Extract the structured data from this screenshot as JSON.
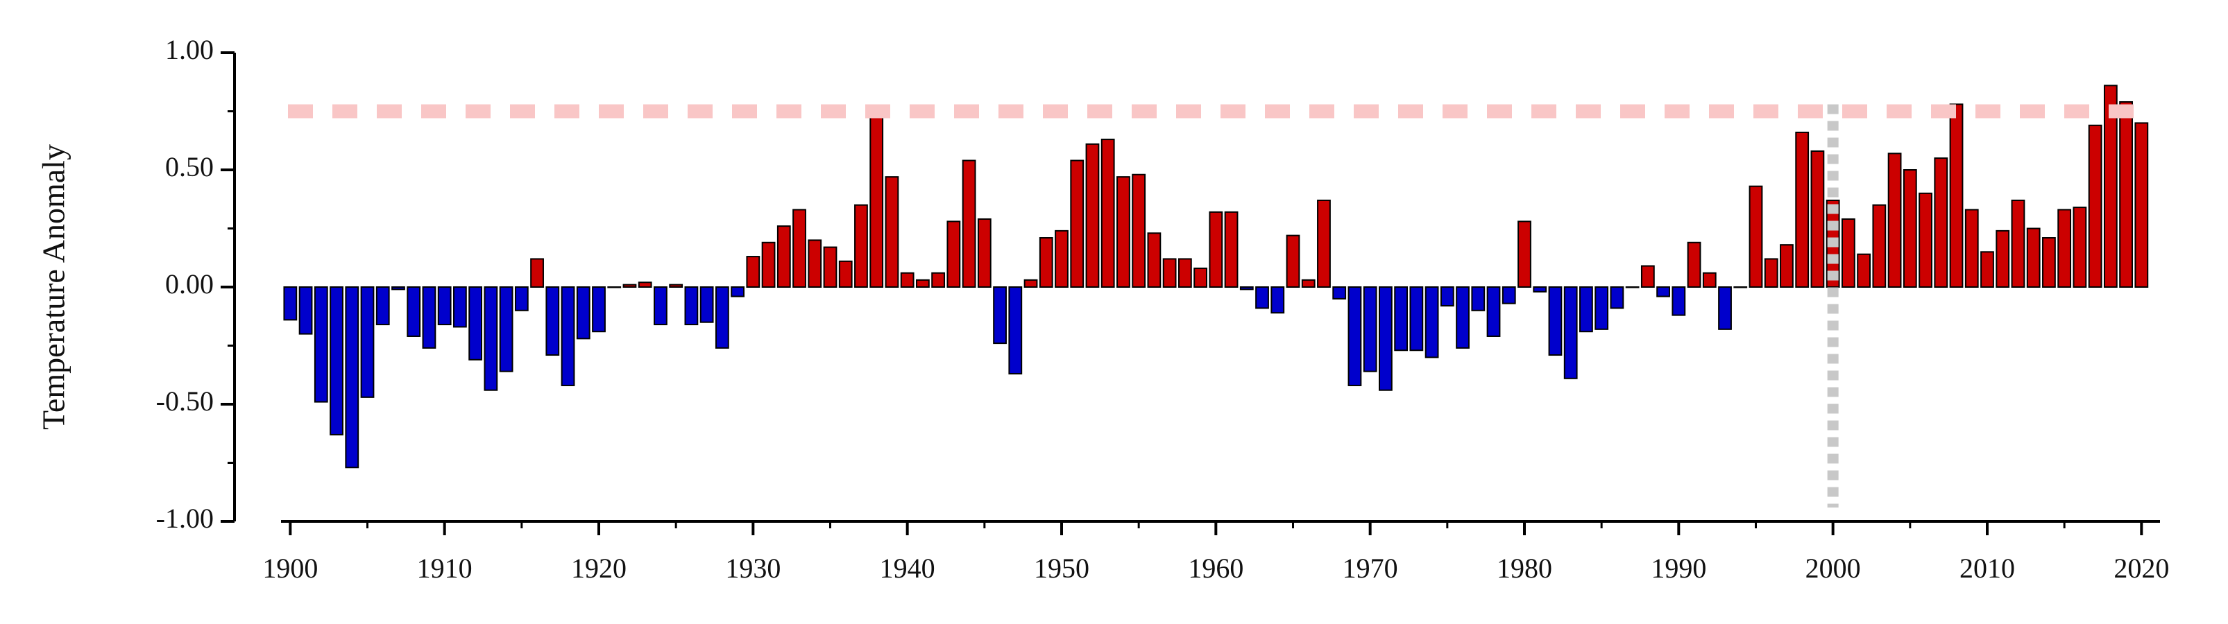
{
  "chart_data": {
    "type": "bar",
    "y_label": "Temperature Anomaly",
    "x": [
      1900,
      1901,
      1902,
      1903,
      1904,
      1905,
      1906,
      1907,
      1908,
      1909,
      1910,
      1911,
      1912,
      1913,
      1914,
      1915,
      1916,
      1917,
      1918,
      1919,
      1920,
      1921,
      1922,
      1923,
      1924,
      1925,
      1926,
      1927,
      1928,
      1929,
      1930,
      1931,
      1932,
      1933,
      1934,
      1935,
      1936,
      1937,
      1938,
      1939,
      1940,
      1941,
      1942,
      1943,
      1944,
      1945,
      1946,
      1947,
      1948,
      1949,
      1950,
      1951,
      1952,
      1953,
      1954,
      1955,
      1956,
      1957,
      1958,
      1959,
      1960,
      1961,
      1962,
      1963,
      1964,
      1965,
      1966,
      1967,
      1968,
      1969,
      1970,
      1971,
      1972,
      1973,
      1974,
      1975,
      1976,
      1977,
      1978,
      1979,
      1980,
      1981,
      1982,
      1983,
      1984,
      1985,
      1986,
      1987,
      1988,
      1989,
      1990,
      1991,
      1992,
      1993,
      1994,
      1995,
      1996,
      1997,
      1998,
      1999,
      2000,
      2001,
      2002,
      2003,
      2004,
      2005,
      2006,
      2007,
      2008,
      2009,
      2010,
      2011,
      2012,
      2013,
      2014,
      2015,
      2016,
      2017,
      2018,
      2019,
      2020
    ],
    "values": [
      -0.14,
      -0.2,
      -0.49,
      -0.63,
      -0.77,
      -0.47,
      -0.16,
      -0.01,
      -0.21,
      -0.26,
      -0.16,
      -0.17,
      -0.31,
      -0.44,
      -0.36,
      -0.1,
      0.12,
      -0.29,
      -0.42,
      -0.22,
      -0.19,
      0.0,
      0.01,
      0.02,
      -0.16,
      0.01,
      -0.16,
      -0.15,
      -0.26,
      -0.04,
      0.13,
      0.19,
      0.26,
      0.33,
      0.2,
      0.17,
      0.11,
      0.35,
      0.74,
      0.47,
      0.06,
      0.03,
      0.06,
      0.28,
      0.54,
      0.29,
      -0.24,
      -0.37,
      0.03,
      0.21,
      0.24,
      0.54,
      0.61,
      0.63,
      0.47,
      0.48,
      0.23,
      0.12,
      0.12,
      0.08,
      0.32,
      0.32,
      -0.01,
      -0.09,
      -0.11,
      0.22,
      0.03,
      0.37,
      -0.05,
      -0.42,
      -0.36,
      -0.44,
      -0.27,
      -0.27,
      -0.3,
      -0.08,
      -0.26,
      -0.1,
      -0.21,
      -0.07,
      0.28,
      -0.02,
      -0.29,
      -0.39,
      -0.19,
      -0.18,
      -0.09,
      0.0,
      0.09,
      -0.04,
      -0.12,
      0.19,
      0.06,
      -0.18,
      0.0,
      0.43,
      0.12,
      0.18,
      0.66,
      0.58,
      0.37,
      0.29,
      0.14,
      0.35,
      0.57,
      0.5,
      0.4,
      0.55,
      0.78,
      0.33,
      0.15,
      0.24,
      0.37,
      0.25,
      0.21,
      0.33,
      0.34,
      0.69,
      0.86,
      0.79,
      0.7
    ],
    "positive_color": "#cc0000",
    "negative_color": "#0000cc",
    "xlim": [
      1899.4,
      2021.2
    ],
    "xticks": [
      1900,
      1910,
      1920,
      1930,
      1940,
      1950,
      1960,
      1970,
      1980,
      1990,
      2000,
      2010,
      2020
    ],
    "xticks_minor": [
      1905,
      1915,
      1925,
      1935,
      1945,
      1955,
      1965,
      1975,
      1985,
      1995,
      2005,
      2015
    ],
    "ylim": [
      -1,
      1
    ],
    "yticks": [
      {
        "value": 1,
        "label": "1.00"
      },
      {
        "value": 0.5,
        "label": "0.50"
      },
      {
        "value": 0,
        "label": "0.00"
      },
      {
        "value": -0.5,
        "label": "-0.50"
      },
      {
        "value": -1,
        "label": "-1.00"
      }
    ],
    "yticks_minor": [
      0.75,
      0.25,
      -0.25,
      -0.75
    ],
    "hline": {
      "value": 0.75,
      "color": "#f9c6c6"
    },
    "vline": {
      "value": 2000,
      "color": "#c8c8c8"
    }
  }
}
